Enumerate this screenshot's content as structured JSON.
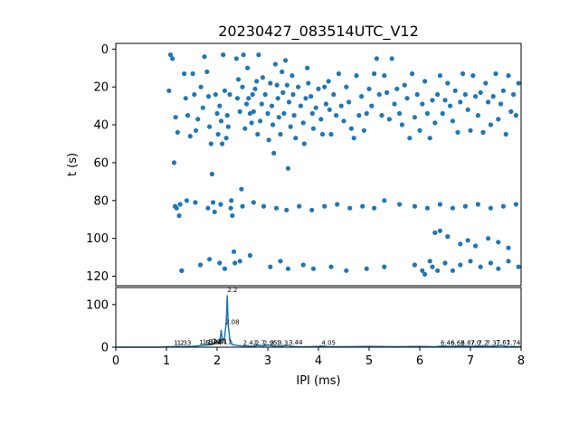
{
  "figure": {
    "title": "20230427_083514UTC_V12",
    "dot_color": "#1f77b4",
    "line_color": "#1f77b4"
  },
  "chart_data": [
    {
      "type": "scatter",
      "name": "raster",
      "xlim": [
        0,
        8
      ],
      "ylim": [
        125,
        -3
      ],
      "ylabel": "t (s)",
      "yticks": [
        0,
        20,
        40,
        60,
        80,
        100,
        120
      ],
      "y_inverted": true,
      "grid": false,
      "points": [
        [
          1.08,
          3
        ],
        [
          1.12,
          5
        ],
        [
          1.05,
          22
        ],
        [
          1.18,
          36
        ],
        [
          1.22,
          44
        ],
        [
          1.15,
          60
        ],
        [
          1.2,
          84
        ],
        [
          1.25,
          88
        ],
        [
          1.3,
          117
        ],
        [
          1.35,
          13
        ],
        [
          1.38,
          26
        ],
        [
          1.42,
          35
        ],
        [
          1.47,
          46
        ],
        [
          1.52,
          13
        ],
        [
          1.55,
          24
        ],
        [
          1.58,
          43
        ],
        [
          1.62,
          37
        ],
        [
          1.68,
          20
        ],
        [
          1.72,
          31
        ],
        [
          1.75,
          4
        ],
        [
          1.8,
          12
        ],
        [
          1.83,
          25
        ],
        [
          1.85,
          41
        ],
        [
          1.88,
          50
        ],
        [
          1.9,
          66
        ],
        [
          1.92,
          81
        ],
        [
          1.95,
          86
        ],
        [
          1.97,
          24
        ],
        [
          2.0,
          34
        ],
        [
          2.02,
          45
        ],
        [
          2.05,
          30
        ],
        [
          2.08,
          38
        ],
        [
          2.1,
          50
        ],
        [
          2.12,
          3
        ],
        [
          2.15,
          22
        ],
        [
          2.18,
          47
        ],
        [
          2.2,
          35
        ],
        [
          2.22,
          41
        ],
        [
          2.25,
          24
        ],
        [
          2.28,
          80
        ],
        [
          2.3,
          88
        ],
        [
          2.33,
          107
        ],
        [
          2.35,
          113
        ],
        [
          2.38,
          5
        ],
        [
          2.4,
          26
        ],
        [
          2.42,
          16
        ],
        [
          2.45,
          33
        ],
        [
          2.48,
          74
        ],
        [
          2.5,
          20
        ],
        [
          2.52,
          3
        ],
        [
          2.55,
          42
        ],
        [
          2.58,
          29
        ],
        [
          2.6,
          10
        ],
        [
          2.62,
          26
        ],
        [
          2.65,
          34
        ],
        [
          2.68,
          39
        ],
        [
          2.7,
          24
        ],
        [
          2.72,
          33
        ],
        [
          2.75,
          21
        ],
        [
          2.78,
          17
        ],
        [
          2.8,
          45
        ],
        [
          2.82,
          3
        ],
        [
          2.85,
          38
        ],
        [
          2.88,
          29
        ],
        [
          2.9,
          15
        ],
        [
          2.95,
          24
        ],
        [
          3.0,
          34
        ],
        [
          3.02,
          48
        ],
        [
          3.05,
          18
        ],
        [
          3.08,
          30
        ],
        [
          3.1,
          40
        ],
        [
          3.12,
          55
        ],
        [
          3.15,
          8
        ],
        [
          3.18,
          19
        ],
        [
          3.2,
          26
        ],
        [
          3.22,
          36
        ],
        [
          3.25,
          45
        ],
        [
          3.28,
          12
        ],
        [
          3.3,
          23
        ],
        [
          3.32,
          34
        ],
        [
          3.35,
          6
        ],
        [
          3.38,
          19
        ],
        [
          3.4,
          63
        ],
        [
          3.42,
          28
        ],
        [
          3.45,
          41
        ],
        [
          3.48,
          14
        ],
        [
          3.5,
          24
        ],
        [
          3.52,
          35
        ],
        [
          3.55,
          47
        ],
        [
          3.6,
          20
        ],
        [
          3.65,
          30
        ],
        [
          3.7,
          39
        ],
        [
          3.72,
          50
        ],
        [
          3.75,
          26
        ],
        [
          3.78,
          10
        ],
        [
          3.8,
          18
        ],
        [
          3.85,
          25
        ],
        [
          3.88,
          34
        ],
        [
          3.9,
          42
        ],
        [
          3.95,
          31
        ],
        [
          4.0,
          21
        ],
        [
          4.05,
          37
        ],
        [
          4.08,
          45
        ],
        [
          4.12,
          20
        ],
        [
          4.15,
          29
        ],
        [
          4.2,
          17
        ],
        [
          4.22,
          32
        ],
        [
          4.25,
          45
        ],
        [
          4.3,
          24
        ],
        [
          4.35,
          35
        ],
        [
          4.4,
          13
        ],
        [
          4.45,
          30
        ],
        [
          4.5,
          38
        ],
        [
          4.55,
          20
        ],
        [
          4.6,
          28
        ],
        [
          4.65,
          42
        ],
        [
          4.7,
          47
        ],
        [
          4.75,
          14
        ],
        [
          4.8,
          35
        ],
        [
          4.85,
          25
        ],
        [
          4.9,
          43
        ],
        [
          4.95,
          34
        ],
        [
          5.0,
          21
        ],
        [
          5.05,
          30
        ],
        [
          5.1,
          13
        ],
        [
          5.15,
          5
        ],
        [
          5.2,
          24
        ],
        [
          5.25,
          35
        ],
        [
          5.3,
          14
        ],
        [
          5.35,
          23
        ],
        [
          5.4,
          37
        ],
        [
          5.45,
          5
        ],
        [
          5.5,
          29
        ],
        [
          5.55,
          21
        ],
        [
          5.6,
          34
        ],
        [
          5.65,
          40
        ],
        [
          5.7,
          19
        ],
        [
          5.75,
          26
        ],
        [
          5.8,
          47
        ],
        [
          5.85,
          13
        ],
        [
          5.9,
          36
        ],
        [
          5.95,
          24
        ],
        [
          6.0,
          43
        ],
        [
          6.05,
          29
        ],
        [
          6.1,
          17
        ],
        [
          6.15,
          34
        ],
        [
          6.2,
          47
        ],
        [
          6.25,
          27
        ],
        [
          6.3,
          39
        ],
        [
          6.35,
          24
        ],
        [
          6.4,
          14
        ],
        [
          6.45,
          34
        ],
        [
          6.5,
          27
        ],
        [
          6.55,
          18
        ],
        [
          6.6,
          30
        ],
        [
          6.65,
          38
        ],
        [
          6.7,
          22
        ],
        [
          6.75,
          44
        ],
        [
          6.8,
          28
        ],
        [
          6.85,
          13
        ],
        [
          6.9,
          24
        ],
        [
          6.95,
          32
        ],
        [
          7.0,
          43
        ],
        [
          7.05,
          14
        ],
        [
          7.1,
          25
        ],
        [
          7.15,
          35
        ],
        [
          7.2,
          23
        ],
        [
          7.25,
          44
        ],
        [
          7.3,
          18
        ],
        [
          7.35,
          28
        ],
        [
          7.4,
          40
        ],
        [
          7.45,
          25
        ],
        [
          7.5,
          13
        ],
        [
          7.55,
          37
        ],
        [
          7.6,
          29
        ],
        [
          7.65,
          22
        ],
        [
          7.7,
          45
        ],
        [
          7.75,
          14
        ],
        [
          7.8,
          33
        ],
        [
          7.85,
          24
        ],
        [
          7.9,
          35
        ],
        [
          7.95,
          18
        ],
        [
          1.17,
          83
        ],
        [
          1.27,
          82
        ],
        [
          1.4,
          80
        ],
        [
          1.57,
          81
        ],
        [
          1.82,
          84
        ],
        [
          2.07,
          82
        ],
        [
          2.27,
          84
        ],
        [
          2.5,
          83
        ],
        [
          2.72,
          81
        ],
        [
          2.92,
          83
        ],
        [
          3.17,
          84
        ],
        [
          3.37,
          85
        ],
        [
          3.62,
          83
        ],
        [
          3.87,
          85
        ],
        [
          4.12,
          83
        ],
        [
          4.37,
          82
        ],
        [
          4.62,
          84
        ],
        [
          4.87,
          83
        ],
        [
          5.1,
          84
        ],
        [
          5.3,
          80
        ],
        [
          5.6,
          82
        ],
        [
          5.9,
          83
        ],
        [
          6.15,
          84
        ],
        [
          6.4,
          82
        ],
        [
          6.65,
          84
        ],
        [
          6.9,
          83
        ],
        [
          7.15,
          82
        ],
        [
          7.4,
          84
        ],
        [
          7.65,
          83
        ],
        [
          7.9,
          82
        ],
        [
          1.3,
          117
        ],
        [
          1.67,
          114
        ],
        [
          1.85,
          111
        ],
        [
          2.05,
          113
        ],
        [
          2.15,
          116
        ],
        [
          2.45,
          112
        ],
        [
          2.65,
          109
        ],
        [
          3.05,
          115
        ],
        [
          3.25,
          112
        ],
        [
          3.4,
          116
        ],
        [
          3.7,
          114
        ],
        [
          3.9,
          116
        ],
        [
          4.25,
          115
        ],
        [
          4.55,
          117
        ],
        [
          4.95,
          116
        ],
        [
          5.3,
          115
        ],
        [
          5.9,
          114
        ],
        [
          6.05,
          117
        ],
        [
          6.1,
          119
        ],
        [
          6.2,
          112
        ],
        [
          6.25,
          115
        ],
        [
          6.35,
          117
        ],
        [
          6.5,
          113
        ],
        [
          6.65,
          117
        ],
        [
          6.8,
          114
        ],
        [
          7.0,
          112
        ],
        [
          7.2,
          115
        ],
        [
          7.4,
          113
        ],
        [
          7.55,
          116
        ],
        [
          7.75,
          112
        ],
        [
          7.95,
          115
        ],
        [
          6.3,
          97
        ],
        [
          6.4,
          96
        ],
        [
          6.55,
          99
        ],
        [
          6.8,
          103
        ],
        [
          6.95,
          101
        ],
        [
          7.1,
          104
        ],
        [
          7.35,
          100
        ],
        [
          7.55,
          102
        ],
        [
          7.75,
          105
        ]
      ],
      "peak_labels": []
    },
    {
      "type": "line",
      "name": "ipi-histogram",
      "xlabel": "IPI (ms)",
      "xlim": [
        0,
        8
      ],
      "ylim": [
        0,
        140
      ],
      "xticks": [
        0,
        1,
        2,
        3,
        4,
        5,
        6,
        7,
        8
      ],
      "yticks": [
        0,
        100
      ],
      "grid": false,
      "x": [
        0.0,
        0.5,
        0.9,
        1.0,
        1.1,
        1.2,
        1.3,
        1.4,
        1.5,
        1.6,
        1.7,
        1.8,
        1.9,
        1.95,
        2.0,
        2.05,
        2.08,
        2.1,
        2.12,
        2.15,
        2.18,
        2.2,
        2.22,
        2.25,
        2.3,
        2.4,
        2.5,
        2.6,
        2.7,
        2.8,
        2.9,
        3.0,
        3.1,
        3.2,
        3.3,
        3.4,
        3.5,
        3.6,
        3.8,
        4.0,
        4.05,
        4.2,
        4.5,
        5.0,
        5.5,
        6.0,
        6.3,
        6.46,
        6.6,
        6.8,
        7.0,
        7.2,
        7.4,
        7.6,
        7.74,
        8.0
      ],
      "y": [
        0,
        0,
        0,
        1,
        1,
        2,
        1,
        2,
        2,
        3,
        4,
        5,
        6,
        9,
        14,
        10,
        40,
        20,
        15,
        25,
        60,
        122,
        50,
        20,
        6,
        4,
        3,
        3,
        2,
        4,
        3,
        5,
        3,
        2,
        3,
        4,
        2,
        1,
        1,
        2,
        3,
        1,
        1,
        2,
        1,
        2,
        1,
        3,
        2,
        3,
        2,
        3,
        2,
        4,
        2,
        1
      ],
      "peak_labels": [
        {
          "x": 1.25,
          "y": 1,
          "text": "1.2"
        },
        {
          "x": 1.35,
          "y": 1,
          "text": "1.33"
        },
        {
          "x": 1.75,
          "y": 2,
          "text": "1.6"
        },
        {
          "x": 1.85,
          "y": 3,
          "text": "1.57"
        },
        {
          "x": 1.95,
          "y": 2,
          "text": "1.84"
        },
        {
          "x": 2.0,
          "y": 3,
          "text": "1.97"
        },
        {
          "x": 2.15,
          "y": 3,
          "text": "2.11"
        },
        {
          "x": 2.05,
          "y": 5,
          "text": "2.81"
        },
        {
          "x": 2.3,
          "y": 50,
          "text": "2.08"
        },
        {
          "x": 2.3,
          "y": 125,
          "text": "2.2"
        },
        {
          "x": 2.65,
          "y": 1,
          "text": "2.42"
        },
        {
          "x": 2.85,
          "y": 1,
          "text": "2.7"
        },
        {
          "x": 3.05,
          "y": 1,
          "text": "2.95"
        },
        {
          "x": 3.15,
          "y": 1,
          "text": "3.1"
        },
        {
          "x": 3.3,
          "y": 1,
          "text": "3.3"
        },
        {
          "x": 3.55,
          "y": 2,
          "text": "3.44"
        },
        {
          "x": 4.2,
          "y": 1,
          "text": "4.05"
        },
        {
          "x": 6.55,
          "y": 1,
          "text": "6.46"
        },
        {
          "x": 6.75,
          "y": 1,
          "text": "6.62"
        },
        {
          "x": 6.95,
          "y": 1,
          "text": "6.87"
        },
        {
          "x": 7.1,
          "y": 1,
          "text": "7.0"
        },
        {
          "x": 7.25,
          "y": 1,
          "text": "7.2"
        },
        {
          "x": 7.45,
          "y": 1,
          "text": "7.37"
        },
        {
          "x": 7.65,
          "y": 2,
          "text": "7.61"
        },
        {
          "x": 7.85,
          "y": 1,
          "text": "7.74"
        }
      ]
    }
  ]
}
